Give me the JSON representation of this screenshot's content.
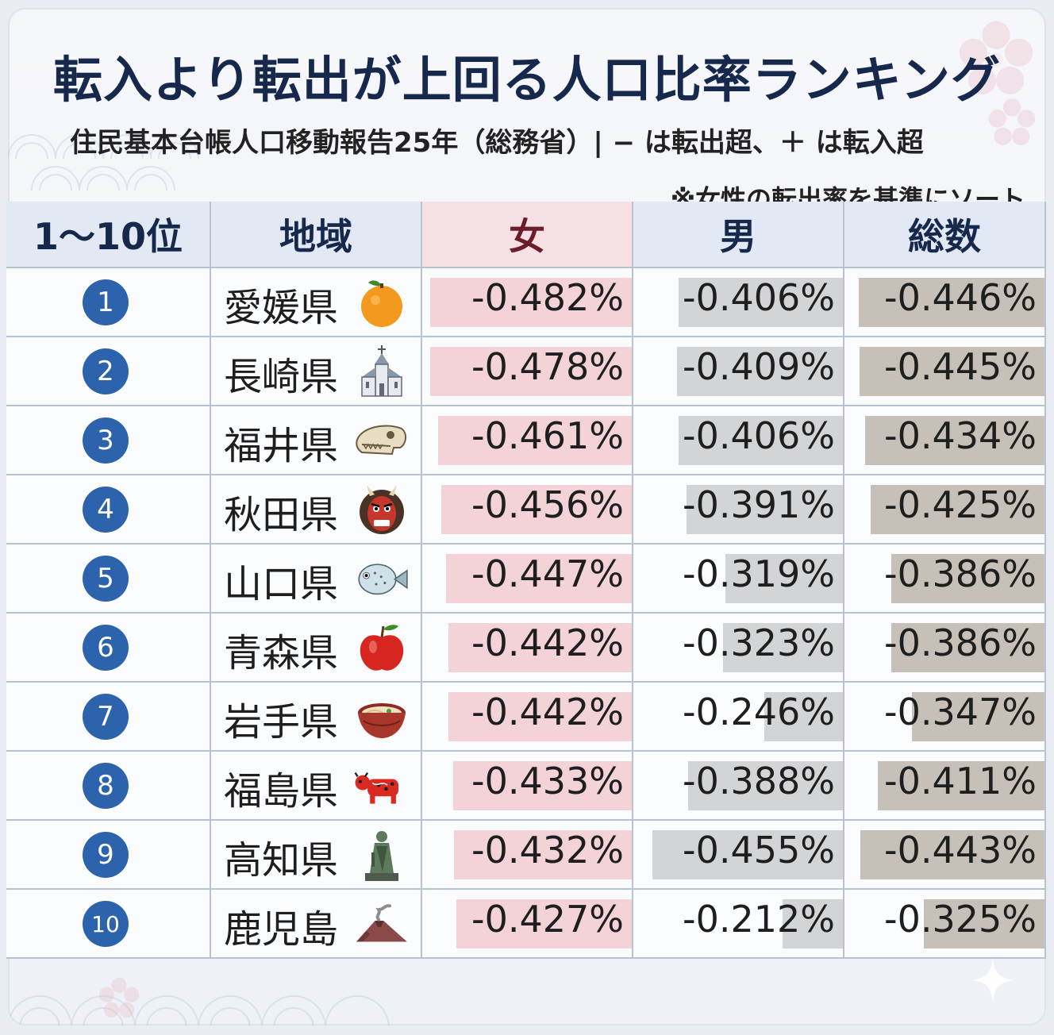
{
  "header": {
    "title": "転入より転出が上回る人口比率ランキング",
    "subtitle": "住民基本台帳人口移動報告25年（総務省）| − は転出超、＋ は転入超",
    "note": "※女性の転出率を基準にソート"
  },
  "columns": {
    "rank": "1〜10位",
    "region": "地域",
    "female": "女",
    "male": "男",
    "total": "総数"
  },
  "colors": {
    "female_bar": "#f3d3d7",
    "male_bar": "#d3d4d6",
    "total_bar": "#c6c0b9",
    "badge": "#2d63ad",
    "title": "#16294d"
  },
  "chart_data": {
    "type": "table",
    "rows": [
      {
        "rank": "1",
        "region": "愛媛県",
        "icon": "mandarin-orange-icon",
        "female": -0.482,
        "male": -0.406,
        "total": -0.446,
        "female_text": "-0.482%",
        "male_text": "-0.406%",
        "total_text": "-0.446%"
      },
      {
        "rank": "2",
        "region": "長崎県",
        "icon": "church-icon",
        "female": -0.478,
        "male": -0.409,
        "total": -0.445,
        "female_text": "-0.478%",
        "male_text": "-0.409%",
        "total_text": "-0.445%"
      },
      {
        "rank": "3",
        "region": "福井県",
        "icon": "dinosaur-skull-icon",
        "female": -0.461,
        "male": -0.406,
        "total": -0.434,
        "female_text": "-0.461%",
        "male_text": "-0.406%",
        "total_text": "-0.434%"
      },
      {
        "rank": "4",
        "region": "秋田県",
        "icon": "namahage-mask-icon",
        "female": -0.456,
        "male": -0.391,
        "total": -0.425,
        "female_text": "-0.456%",
        "male_text": "-0.391%",
        "total_text": "-0.425%"
      },
      {
        "rank": "5",
        "region": "山口県",
        "icon": "pufferfish-icon",
        "female": -0.447,
        "male": -0.319,
        "total": -0.386,
        "female_text": "-0.447%",
        "male_text": "-0.319%",
        "total_text": "-0.386%"
      },
      {
        "rank": "6",
        "region": "青森県",
        "icon": "apple-icon",
        "female": -0.442,
        "male": -0.323,
        "total": -0.386,
        "female_text": "-0.442%",
        "male_text": "-0.323%",
        "total_text": "-0.386%"
      },
      {
        "rank": "7",
        "region": "岩手県",
        "icon": "noodle-bowl-icon",
        "female": -0.442,
        "male": -0.246,
        "total": -0.347,
        "female_text": "-0.442%",
        "male_text": "-0.246%",
        "total_text": "-0.347%"
      },
      {
        "rank": "8",
        "region": "福島県",
        "icon": "akabeko-cow-icon",
        "female": -0.433,
        "male": -0.388,
        "total": -0.411,
        "female_text": "-0.433%",
        "male_text": "-0.388%",
        "total_text": "-0.411%"
      },
      {
        "rank": "9",
        "region": "高知県",
        "icon": "samurai-statue-icon",
        "female": -0.432,
        "male": -0.455,
        "total": -0.443,
        "female_text": "-0.432%",
        "male_text": "-0.455%",
        "total_text": "-0.443%"
      },
      {
        "rank": "10",
        "region": "鹿児島",
        "icon": "volcano-icon",
        "female": -0.427,
        "male": -0.212,
        "total": -0.325,
        "female_text": "-0.427%",
        "male_text": "-0.212%",
        "total_text": "-0.325%"
      }
    ]
  }
}
